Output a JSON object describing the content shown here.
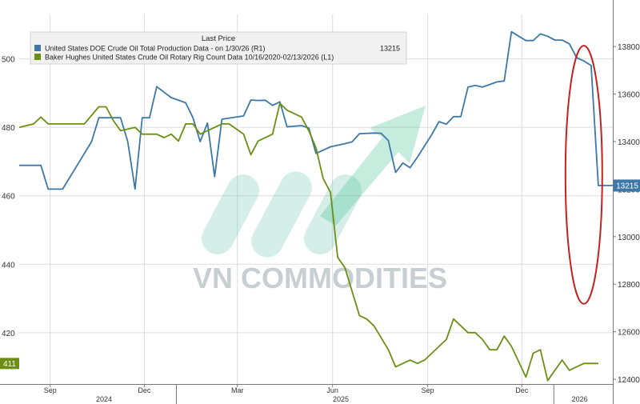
{
  "chart_data": {
    "type": "line",
    "legend": {
      "header": "Last Price",
      "placement": "top-left",
      "entries": [
        {
          "label": "United States DOE Crude Oil Total Production Data -  on 1/30/26  (R1)",
          "value": "13215"
        },
        {
          "label": "Baker Hughes United States Crude Oil Rotary Rig Count Data 10/16/2020-02/13/2026  (L1)",
          "value": "411"
        }
      ]
    },
    "x_axis": {
      "range": [
        "2024-08-02",
        "2026-02-27"
      ],
      "month_ticks": [
        {
          "label": "Sep",
          "date": "2024-09-01"
        },
        {
          "label": "Dec",
          "date": "2024-12-01"
        },
        {
          "label": "Mar",
          "date": "2025-03-01"
        },
        {
          "label": "Jun",
          "date": "2025-06-01"
        },
        {
          "label": "Sep",
          "date": "2025-09-01"
        },
        {
          "label": "Dec",
          "date": "2025-12-01"
        }
      ],
      "year_labels": [
        {
          "label": "2024",
          "date": "2024-10-23"
        },
        {
          "label": "2025",
          "date": "2025-06-09"
        },
        {
          "label": "2026",
          "date": "2026-01-26"
        }
      ],
      "year_dividers": [
        "2025-01-01",
        "2026-01-01"
      ]
    },
    "left_axis": {
      "range": [
        405,
        513
      ],
      "ticks": [
        420,
        440,
        460,
        480,
        500
      ]
    },
    "right_axis": {
      "range": [
        12380,
        13935
      ],
      "ticks": [
        12400,
        12600,
        12800,
        13000,
        13200,
        13400,
        13600,
        13800
      ]
    },
    "grid": true,
    "series": [
      {
        "name": "United States DOE Crude Oil Total Production Data",
        "axis": "right",
        "color": "#3d78a8",
        "last_value": 13215,
        "points": [
          [
            "2024-08-02",
            13300
          ],
          [
            "2024-08-09",
            13300
          ],
          [
            "2024-08-23",
            13300
          ],
          [
            "2024-08-30",
            13200
          ],
          [
            "2024-09-13",
            13200
          ],
          [
            "2024-09-27",
            13300
          ],
          [
            "2024-10-11",
            13400
          ],
          [
            "2024-10-18",
            13500
          ],
          [
            "2024-11-01",
            13500
          ],
          [
            "2024-11-08",
            13500
          ],
          [
            "2024-11-15",
            13400
          ],
          [
            "2024-11-22",
            13200
          ],
          [
            "2024-11-29",
            13500
          ],
          [
            "2024-12-06",
            13500
          ],
          [
            "2024-12-13",
            13631
          ],
          [
            "2024-12-27",
            13585
          ],
          [
            "2025-01-10",
            13563
          ],
          [
            "2025-01-17",
            13500
          ],
          [
            "2025-01-24",
            13400
          ],
          [
            "2025-01-31",
            13478
          ],
          [
            "2025-02-07",
            13252
          ],
          [
            "2025-02-14",
            13494
          ],
          [
            "2025-03-07",
            13508
          ],
          [
            "2025-03-14",
            13575
          ],
          [
            "2025-03-21",
            13573
          ],
          [
            "2025-03-28",
            13574
          ],
          [
            "2025-04-04",
            13552
          ],
          [
            "2025-04-11",
            13567
          ],
          [
            "2025-04-18",
            13462
          ],
          [
            "2025-05-02",
            13467
          ],
          [
            "2025-05-09",
            13457
          ],
          [
            "2025-05-16",
            13350
          ],
          [
            "2025-05-30",
            13378
          ],
          [
            "2025-06-13",
            13391
          ],
          [
            "2025-06-20",
            13399
          ],
          [
            "2025-06-27",
            13433
          ],
          [
            "2025-07-11",
            13436
          ],
          [
            "2025-07-18",
            13435
          ],
          [
            "2025-07-25",
            13404
          ],
          [
            "2025-08-01",
            13270
          ],
          [
            "2025-08-08",
            13310
          ],
          [
            "2025-08-15",
            13290
          ],
          [
            "2025-08-22",
            13334
          ],
          [
            "2025-09-05",
            13430
          ],
          [
            "2025-09-12",
            13484
          ],
          [
            "2025-09-19",
            13473
          ],
          [
            "2025-09-26",
            13505
          ],
          [
            "2025-10-03",
            13505
          ],
          [
            "2025-10-10",
            13629
          ],
          [
            "2025-10-17",
            13636
          ],
          [
            "2025-10-24",
            13629
          ],
          [
            "2025-11-07",
            13651
          ],
          [
            "2025-11-14",
            13655
          ],
          [
            "2025-11-21",
            13862
          ],
          [
            "2025-12-05",
            13825
          ],
          [
            "2025-12-12",
            13825
          ],
          [
            "2025-12-19",
            13853
          ],
          [
            "2025-12-26",
            13843
          ],
          [
            "2026-01-02",
            13827
          ],
          [
            "2026-01-09",
            13827
          ],
          [
            "2026-01-16",
            13811
          ],
          [
            "2026-01-23",
            13753
          ],
          [
            "2026-01-30",
            13739
          ],
          [
            "2026-02-06",
            13720
          ],
          [
            "2026-02-13",
            13215
          ],
          [
            "2026-02-27",
            13215
          ]
        ]
      },
      {
        "name": "Baker Hughes United States Crude Oil Rotary Rig Count Data",
        "axis": "left",
        "color": "#6a8f12",
        "last_value": 411,
        "points": [
          [
            "2024-08-02",
            480
          ],
          [
            "2024-08-16",
            481
          ],
          [
            "2024-08-23",
            483
          ],
          [
            "2024-08-30",
            481
          ],
          [
            "2024-09-06",
            481
          ],
          [
            "2024-09-27",
            481
          ],
          [
            "2024-10-04",
            481
          ],
          [
            "2024-10-18",
            486
          ],
          [
            "2024-10-25",
            486
          ],
          [
            "2024-11-01",
            482
          ],
          [
            "2024-11-08",
            479
          ],
          [
            "2024-11-22",
            480
          ],
          [
            "2024-11-29",
            478
          ],
          [
            "2024-12-13",
            478
          ],
          [
            "2024-12-20",
            477
          ],
          [
            "2024-12-27",
            478
          ],
          [
            "2025-01-03",
            476
          ],
          [
            "2025-01-10",
            481
          ],
          [
            "2025-01-17",
            481
          ],
          [
            "2025-01-24",
            478
          ],
          [
            "2025-02-07",
            480
          ],
          [
            "2025-02-14",
            481
          ],
          [
            "2025-02-21",
            481
          ],
          [
            "2025-03-07",
            478
          ],
          [
            "2025-03-14",
            472
          ],
          [
            "2025-03-21",
            476
          ],
          [
            "2025-04-04",
            478
          ],
          [
            "2025-04-11",
            487
          ],
          [
            "2025-04-18",
            485
          ],
          [
            "2025-05-02",
            483
          ],
          [
            "2025-05-09",
            479
          ],
          [
            "2025-05-16",
            474
          ],
          [
            "2025-05-23",
            465
          ],
          [
            "2025-05-30",
            461
          ],
          [
            "2025-06-06",
            442
          ],
          [
            "2025-06-13",
            439
          ],
          [
            "2025-06-20",
            432
          ],
          [
            "2025-06-27",
            425
          ],
          [
            "2025-07-04",
            424
          ],
          [
            "2025-07-11",
            422
          ],
          [
            "2025-07-25",
            415
          ],
          [
            "2025-08-01",
            410
          ],
          [
            "2025-08-08",
            411
          ],
          [
            "2025-08-15",
            412
          ],
          [
            "2025-08-22",
            411
          ],
          [
            "2025-08-29",
            412
          ],
          [
            "2025-09-05",
            414
          ],
          [
            "2025-09-19",
            418
          ],
          [
            "2025-09-26",
            424
          ],
          [
            "2025-10-03",
            422
          ],
          [
            "2025-10-10",
            420
          ],
          [
            "2025-10-17",
            420
          ],
          [
            "2025-10-24",
            418
          ],
          [
            "2025-10-31",
            415
          ],
          [
            "2025-11-07",
            415
          ],
          [
            "2025-11-14",
            419
          ],
          [
            "2025-11-21",
            416
          ],
          [
            "2025-12-05",
            407
          ],
          [
            "2025-12-12",
            414
          ],
          [
            "2025-12-19",
            415
          ],
          [
            "2025-12-26",
            406
          ],
          [
            "2026-01-02",
            409
          ],
          [
            "2026-01-09",
            412
          ],
          [
            "2026-01-16",
            409
          ],
          [
            "2026-01-23",
            410
          ],
          [
            "2026-01-30",
            411
          ],
          [
            "2026-02-13",
            411
          ]
        ]
      }
    ],
    "annotation": {
      "type": "ellipse",
      "color": "#c42121",
      "date": "2026-01-30",
      "y_low": 13000,
      "y_high": 13790,
      "axis": "right"
    },
    "watermark": "VN COMMODITIES"
  }
}
